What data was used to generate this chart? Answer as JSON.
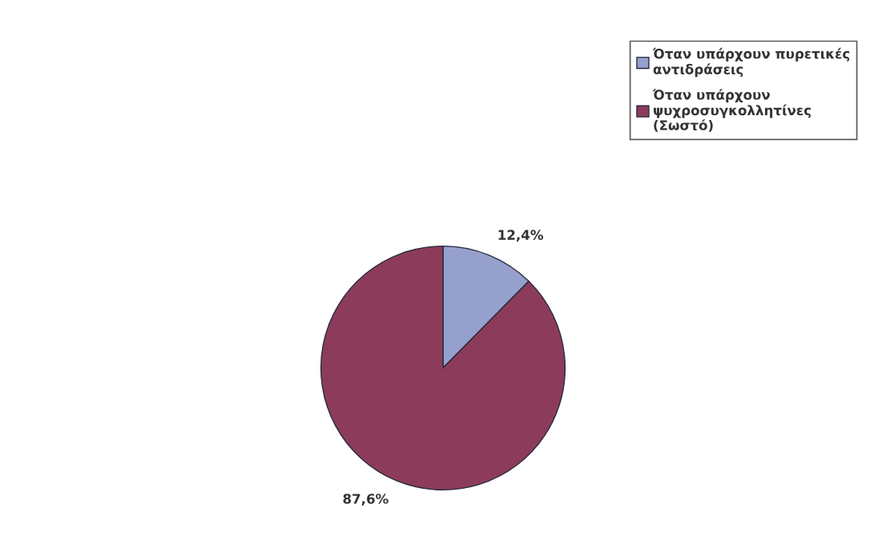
{
  "chart_data": {
    "type": "pie",
    "categories": [
      "Όταν υπάρχουν πυρετικές\nαντιδράσεις",
      "Όταν υπάρχουν\nψυχροσυγκολλητίνες\n(Σωστό)"
    ],
    "values": [
      12.4,
      87.6
    ],
    "colors": [
      "#96a0cd",
      "#8c3c5a"
    ],
    "value_labels": [
      "12,4%",
      "87,6%"
    ],
    "legend": "top right"
  }
}
